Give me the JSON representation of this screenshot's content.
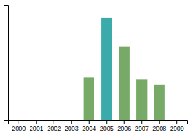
{
  "chart_data": {
    "type": "bar",
    "categories": [
      "2000",
      "2001",
      "2002",
      "2003",
      "2004",
      "2005",
      "2006",
      "2007",
      "2008",
      "2009"
    ],
    "values": [
      0,
      0,
      0,
      0,
      42,
      100,
      72,
      40,
      35,
      0
    ],
    "colors": [
      "#77aa66",
      "#77aa66",
      "#77aa66",
      "#77aa66",
      "#77aa66",
      "#3aabaa",
      "#77aa66",
      "#77aa66",
      "#77aa66",
      "#77aa66"
    ],
    "ylim": [
      0,
      112
    ],
    "yticks": [],
    "grid": false,
    "tick_labels": "x"
  }
}
